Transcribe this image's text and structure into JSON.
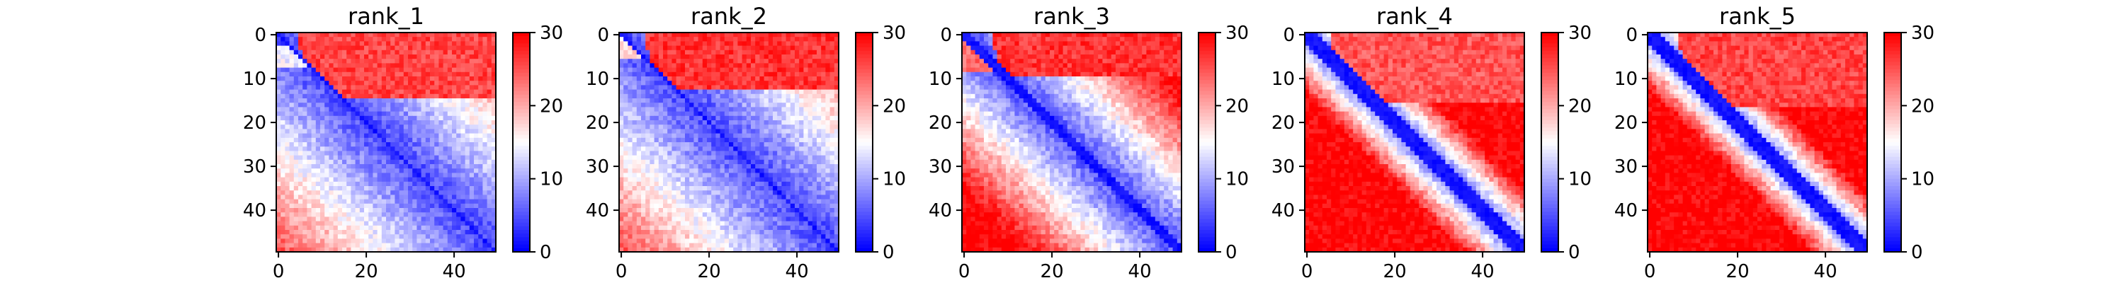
{
  "chart_data": [
    {
      "type": "heatmap",
      "title": "rank_1",
      "xlabel": "",
      "ylabel": "",
      "n": 50,
      "x_ticks": [
        0,
        20,
        40
      ],
      "y_ticks": [
        0,
        10,
        20,
        30,
        40
      ],
      "colorbar_ticks": [
        0,
        10,
        20,
        30
      ],
      "vmin": 0,
      "vmax": 30,
      "colormap": "bwr",
      "colormap_colors": [
        "#0000ff",
        "#ffffff",
        "#ff0000"
      ],
      "pattern": {
        "diag_band": 1.0,
        "upper_block_end": 15,
        "upper_block_start": 4,
        "upper_value": 26,
        "lower_value": 6,
        "edge_stripe": [
          3,
          7
        ],
        "edge_stripe_value": 14
      }
    },
    {
      "type": "heatmap",
      "title": "rank_2",
      "xlabel": "",
      "ylabel": "",
      "n": 50,
      "x_ticks": [
        0,
        20,
        40
      ],
      "y_ticks": [
        0,
        10,
        20,
        30,
        40
      ],
      "colorbar_ticks": [
        0,
        10,
        20,
        30
      ],
      "vmin": 0,
      "vmax": 30,
      "colormap": "bwr",
      "colormap_colors": [
        "#0000ff",
        "#ffffff",
        "#ff0000"
      ],
      "pattern": {
        "diag_band": 1.0,
        "upper_block_end": 13,
        "upper_block_start": 5,
        "upper_value": 27,
        "lower_value": 6,
        "edge_stripe": [
          0,
          5
        ],
        "edge_stripe_value": 17
      }
    },
    {
      "type": "heatmap",
      "title": "rank_3",
      "xlabel": "",
      "ylabel": "",
      "n": 50,
      "x_ticks": [
        0,
        20,
        40
      ],
      "y_ticks": [
        0,
        10,
        20,
        30,
        40
      ],
      "colorbar_ticks": [
        0,
        10,
        20,
        30
      ],
      "vmin": 0,
      "vmax": 30,
      "colormap": "bwr",
      "colormap_colors": [
        "#0000ff",
        "#ffffff",
        "#ff0000"
      ],
      "pattern": {
        "diag_band": 1.4,
        "upper_block_end": 10,
        "upper_block_start": 6,
        "upper_value": 27,
        "lower_value": 10,
        "edge_stripe": [
          0,
          8
        ],
        "edge_stripe_value": 24
      }
    },
    {
      "type": "heatmap",
      "title": "rank_4",
      "xlabel": "",
      "ylabel": "",
      "n": 50,
      "x_ticks": [
        0,
        20,
        40
      ],
      "y_ticks": [
        0,
        10,
        20,
        30,
        40
      ],
      "colorbar_ticks": [
        0,
        10,
        20,
        30
      ],
      "vmin": 0,
      "vmax": 30,
      "colormap": "bwr",
      "colormap_colors": [
        "#0000ff",
        "#ffffff",
        "#ff0000"
      ],
      "pattern": {
        "diag_band": 2.2,
        "upper_block_end": 16,
        "upper_block_start": 5,
        "upper_value": 25,
        "lower_value": 25,
        "edge_stripe": [
          0,
          0
        ],
        "edge_stripe_value": 25
      }
    },
    {
      "type": "heatmap",
      "title": "rank_5",
      "xlabel": "",
      "ylabel": "",
      "n": 50,
      "x_ticks": [
        0,
        20,
        40
      ],
      "y_ticks": [
        0,
        10,
        20,
        30,
        40
      ],
      "colorbar_ticks": [
        0,
        10,
        20,
        30
      ],
      "vmin": 0,
      "vmax": 30,
      "colormap": "bwr",
      "colormap_colors": [
        "#0000ff",
        "#ffffff",
        "#ff0000"
      ],
      "pattern": {
        "diag_band": 2.4,
        "upper_block_end": 17,
        "upper_block_start": 6,
        "upper_value": 26,
        "lower_value": 28,
        "edge_stripe": [
          0,
          0
        ],
        "edge_stripe_value": 28
      }
    }
  ]
}
